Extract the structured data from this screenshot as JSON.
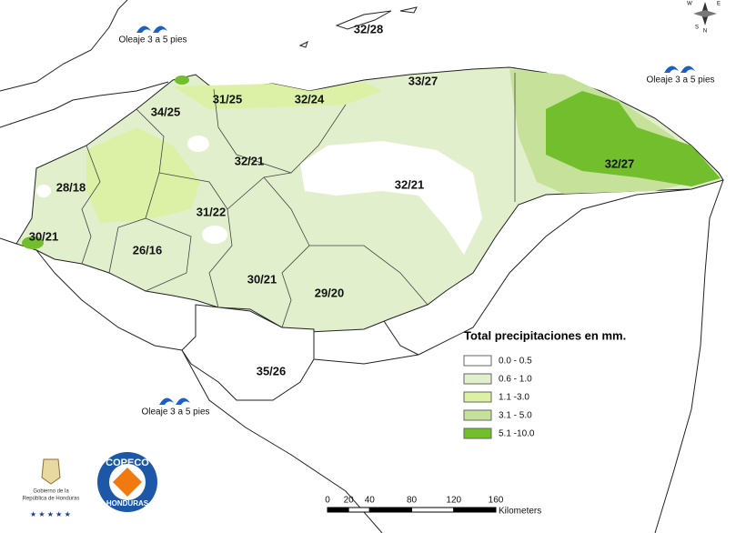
{
  "map": {
    "temperature_labels": [
      "32/28",
      "33/27",
      "31/25",
      "32/24",
      "34/25",
      "32/21",
      "28/18",
      "31/22",
      "32/21",
      "30/21",
      "26/16",
      "30/21",
      "29/20",
      "35/26",
      "32/27"
    ],
    "wave_labels": [
      "Oleaje 3 a 5 pies",
      "Oleaje 3 a 5 pies",
      "Oleaje 3 a 5 pies"
    ],
    "legend": {
      "title": "Total precipitaciones en mm.",
      "items": [
        {
          "label": "0.0 - 0.5",
          "color": "#ffffff"
        },
        {
          "label": "0.6 - 1.0",
          "color": "#e2efcc"
        },
        {
          "label": "1.1 -3.0",
          "color": "#dcf1a6"
        },
        {
          "label": "3.1 - 5.0",
          "color": "#c5e19a"
        },
        {
          "label": "5.1 -10.0",
          "color": "#72be2c"
        }
      ]
    },
    "scale": {
      "ticks": [
        0,
        20,
        40,
        80,
        120,
        160
      ],
      "unit": "Kilometers"
    },
    "compass": [
      "N",
      "W",
      "E",
      "S"
    ],
    "logos": {
      "government": [
        "Gobierno de la",
        "República de Honduras"
      ],
      "copeco": [
        "COPECO",
        "HONDURAS"
      ]
    }
  }
}
